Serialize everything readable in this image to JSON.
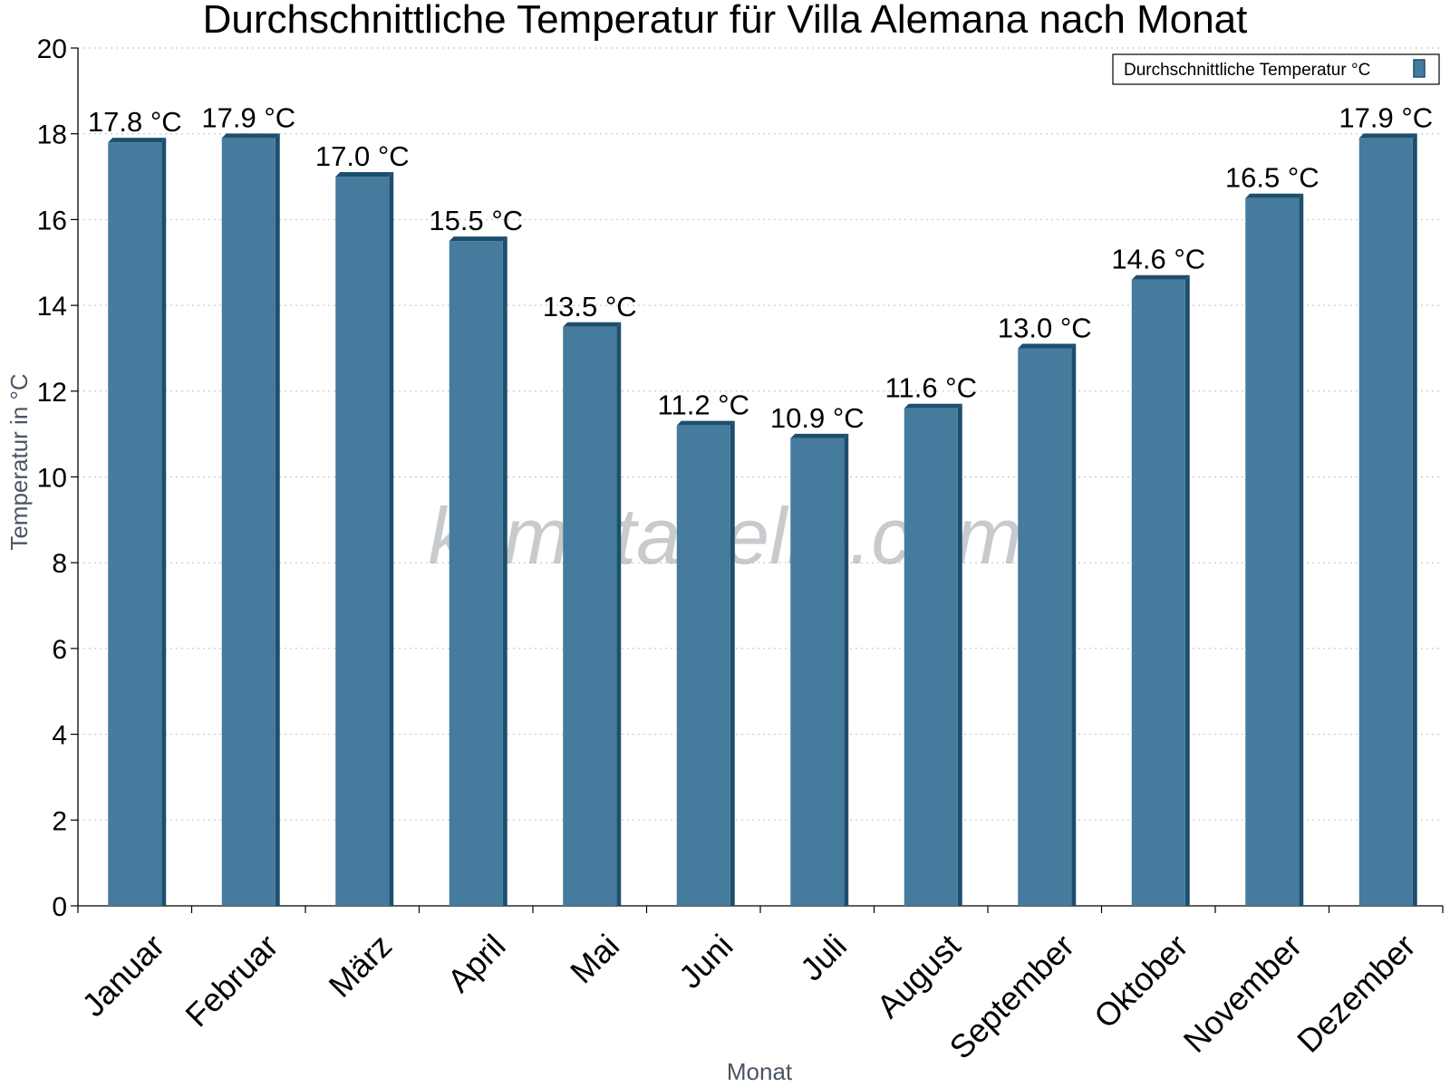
{
  "chart_data": {
    "type": "bar",
    "title": "Durchschnittliche Temperatur für Villa Alemana nach Monat",
    "xlabel": "Monat",
    "ylabel": "Temperatur in °C",
    "ylim": [
      0,
      20
    ],
    "yticks": [
      0,
      2,
      4,
      6,
      8,
      10,
      12,
      14,
      16,
      18,
      20
    ],
    "grid": true,
    "legend_position": "top-right",
    "categories": [
      "Januar",
      "Februar",
      "März",
      "April",
      "Mai",
      "Juni",
      "Juli",
      "August",
      "September",
      "Oktober",
      "November",
      "Dezember"
    ],
    "series": [
      {
        "name": "Durchschnittliche Temperatur °C",
        "values": [
          17.8,
          17.9,
          17.0,
          15.5,
          13.5,
          11.2,
          10.9,
          11.6,
          13.0,
          14.6,
          16.5,
          17.9
        ],
        "labels": [
          "17.8 °C",
          "17.9 °C",
          "17.0 °C",
          "15.5 °C",
          "13.5 °C",
          "11.2 °C",
          "10.9 °C",
          "11.6 °C",
          "13.0 °C",
          "14.6 °C",
          "16.5 °C",
          "17.9 °C"
        ],
        "color": "#457b9d",
        "edge_color": "#1d4e6e"
      }
    ]
  },
  "watermark": "klimatabelle.com"
}
